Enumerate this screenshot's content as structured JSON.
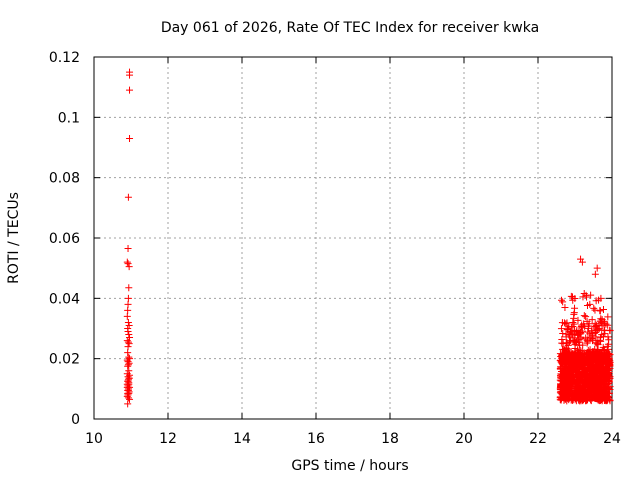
{
  "chart_data": {
    "type": "scatter",
    "title": "Day 061 of 2026, Rate Of TEC Index for receiver kwka",
    "xlabel": "GPS time / hours",
    "ylabel": "ROTI / TECUs",
    "xlim": [
      10,
      24
    ],
    "ylim": [
      0,
      0.12
    ],
    "x_ticks": [
      "10",
      "12",
      "14",
      "16",
      "18",
      "20",
      "22",
      "24"
    ],
    "y_ticks": [
      "0",
      "0.02",
      "0.04",
      "0.06",
      "0.08",
      "0.1",
      "0.12"
    ],
    "grid": true,
    "marker": "+",
    "color": "#ff0000",
    "series": [
      {
        "x": [
          10.96,
          10.96,
          10.96,
          10.96,
          10.93,
          10.92,
          10.9,
          10.92,
          10.95,
          10.94,
          10.93,
          10.92,
          10.91,
          10.9,
          10.93,
          10.95,
          10.91,
          10.92,
          10.94,
          10.96,
          10.9,
          10.93,
          10.95,
          10.92,
          10.91,
          10.94,
          10.96,
          10.9,
          10.92,
          10.95,
          10.93,
          10.91,
          10.94,
          10.9,
          10.96,
          10.92,
          10.95,
          10.93,
          10.91,
          10.94,
          10.9,
          10.92,
          10.96,
          10.93,
          10.91,
          10.95,
          10.94,
          10.92,
          10.9,
          10.93,
          10.96,
          10.91,
          10.95,
          10.92,
          10.94,
          10.9,
          10.93,
          10.91
        ],
        "y": [
          0.115,
          0.114,
          0.109,
          0.093,
          0.0735,
          0.0565,
          0.052,
          0.0515,
          0.0505,
          0.0435,
          0.04,
          0.038,
          0.036,
          0.034,
          0.032,
          0.031,
          0.03,
          0.029,
          0.028,
          0.027,
          0.026,
          0.0255,
          0.025,
          0.024,
          0.022,
          0.0205,
          0.02,
          0.0195,
          0.019,
          0.0185,
          0.018,
          0.0175,
          0.016,
          0.015,
          0.0145,
          0.014,
          0.0135,
          0.013,
          0.0125,
          0.012,
          0.0115,
          0.011,
          0.0105,
          0.01,
          0.0095,
          0.009,
          0.0085,
          0.008,
          0.0075,
          0.007,
          0.0065,
          0.005,
          0.0135,
          0.0125,
          0.0115,
          0.0105,
          0.0095,
          0.0085
        ]
      }
    ],
    "cluster_note_hidden": true
  }
}
